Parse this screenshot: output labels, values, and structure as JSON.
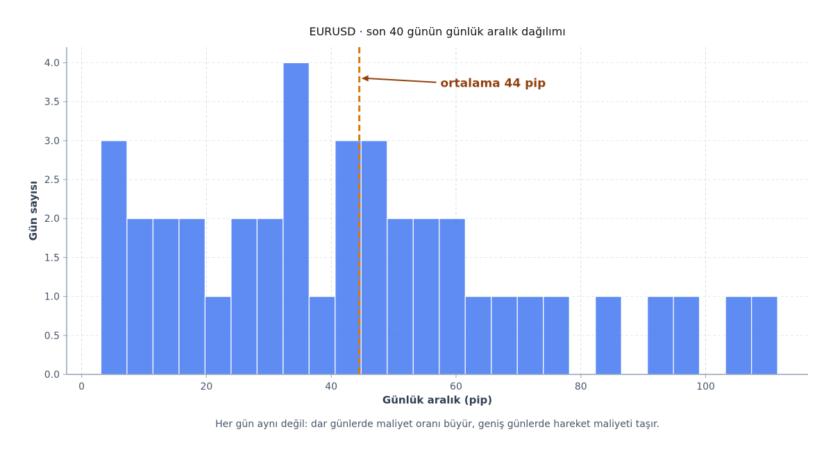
{
  "chart_data": {
    "type": "bar",
    "title": "EURUSD · son 40 günün günlük aralık dağılımı",
    "xlabel": "Günlük aralık (pip)",
    "ylabel": "Gün sayısı",
    "xlim": [
      -2.4,
      116.4
    ],
    "ylim": [
      0,
      4.2
    ],
    "xticks": [
      0,
      20,
      40,
      60,
      80,
      100
    ],
    "yticks": [
      0.0,
      0.5,
      1.0,
      1.5,
      2.0,
      2.5,
      3.0,
      3.5,
      4.0
    ],
    "bin_width": 4.17,
    "bins": [
      {
        "start": 3.1,
        "count": 3
      },
      {
        "start": 7.27,
        "count": 2
      },
      {
        "start": 11.44,
        "count": 2
      },
      {
        "start": 15.61,
        "count": 2
      },
      {
        "start": 19.78,
        "count": 1
      },
      {
        "start": 23.95,
        "count": 2
      },
      {
        "start": 28.12,
        "count": 2
      },
      {
        "start": 32.29,
        "count": 4
      },
      {
        "start": 36.46,
        "count": 1
      },
      {
        "start": 40.63,
        "count": 3
      },
      {
        "start": 44.8,
        "count": 3
      },
      {
        "start": 48.97,
        "count": 2
      },
      {
        "start": 53.14,
        "count": 2
      },
      {
        "start": 57.31,
        "count": 2
      },
      {
        "start": 61.48,
        "count": 1
      },
      {
        "start": 65.65,
        "count": 1
      },
      {
        "start": 69.82,
        "count": 1
      },
      {
        "start": 73.99,
        "count": 1
      },
      {
        "start": 78.16,
        "count": 0
      },
      {
        "start": 82.33,
        "count": 1
      },
      {
        "start": 86.5,
        "count": 0
      },
      {
        "start": 90.67,
        "count": 1
      },
      {
        "start": 94.84,
        "count": 1
      },
      {
        "start": 99.01,
        "count": 0
      },
      {
        "start": 103.18,
        "count": 1
      },
      {
        "start": 107.35,
        "count": 1
      }
    ],
    "mean_line": {
      "value": 44.5,
      "label": "ortalama 44 pip",
      "arrow_tip": [
        44.5,
        3.8
      ],
      "text_anchor": [
        57.5,
        3.74
      ]
    },
    "grid": true,
    "caption": "Her gün aynı değil: dar günlerde maliyet oranı büyür, geniş günlerde hareket maliyeti taşır.",
    "colors": {
      "bar": "#3b73f0",
      "bar_edge": "#ffffff",
      "mean_line": "#d97706",
      "annotation": "#92400e",
      "axis": "#94a3b8",
      "grid": "#d1d5db",
      "text": "#334155"
    }
  }
}
